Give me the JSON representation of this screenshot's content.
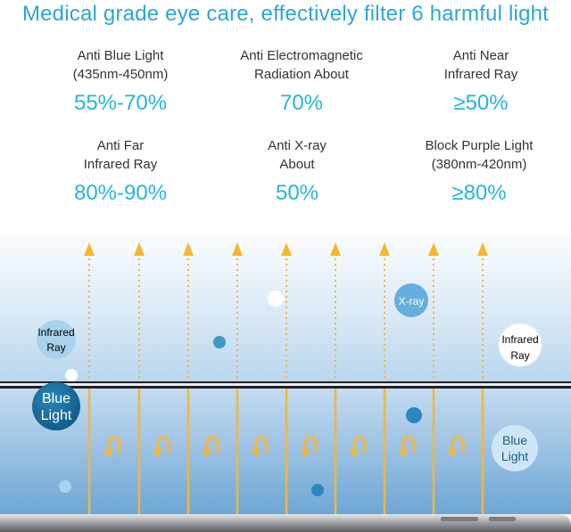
{
  "title": "Medical grade eye care, effectively filter 6 harmful light",
  "stats": [
    {
      "label": "Anti Blue Light\n(435nm-450nm)",
      "value": "55%-70%"
    },
    {
      "label": "Anti Electromagnetic\nRadiation About",
      "value": "70%"
    },
    {
      "label": "Anti Near\nInfrared Ray",
      "value": "≥50%"
    },
    {
      "label": "Anti Far\nInfrared Ray",
      "value": "80%-90%"
    },
    {
      "label": "Anti X-ray\nAbout",
      "value": "50%"
    },
    {
      "label": "Block Purple Light\n(380nm-420nm)",
      "value": "≥80%"
    }
  ],
  "bubbles": {
    "infrared_left": [
      "Infrared",
      "Ray"
    ],
    "xray": "X-ray",
    "infrared_right": [
      "Infrared",
      "Ray"
    ],
    "blue_light_left": [
      "Blue",
      "Light"
    ],
    "blue_light_right": [
      "Blue",
      "Light"
    ]
  },
  "colors": {
    "accent": "#25b4de",
    "arrow": "#f5b730",
    "title": "#2aa6d8"
  }
}
